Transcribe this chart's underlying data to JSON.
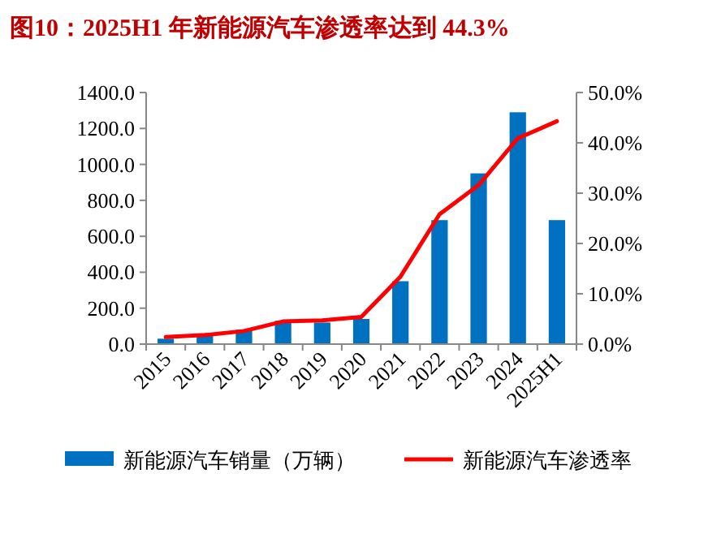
{
  "chart_data": {
    "type": "bar",
    "title": "图10：2025H1 年新能源汽车渗透率达到 44.3%",
    "categories": [
      "2015",
      "2016",
      "2017",
      "2018",
      "2019",
      "2020",
      "2021",
      "2022",
      "2023",
      "2024",
      "2025H1"
    ],
    "series": [
      {
        "name": "新能源汽车销量（万辆）",
        "color": "#0070c0",
        "values": [
          30,
          50,
          80,
          130,
          120,
          140,
          350,
          690,
          950,
          1290,
          690
        ]
      },
      {
        "name": "新能源汽车渗透率",
        "type": "line",
        "axis": "y2",
        "color": "#ff0000",
        "values": [
          1.4,
          1.8,
          2.6,
          4.5,
          4.7,
          5.4,
          13.4,
          25.8,
          31.6,
          40.9,
          44.3
        ]
      }
    ],
    "ylim": [
      0,
      1400
    ],
    "yticks": [
      {
        "value": 0,
        "label": "0.0"
      },
      {
        "value": 200,
        "label": "200.0"
      },
      {
        "value": 400,
        "label": "400.0"
      },
      {
        "value": 600,
        "label": "600.0"
      },
      {
        "value": 800,
        "label": "800.0"
      },
      {
        "value": 1000,
        "label": "1000.0"
      },
      {
        "value": 1200,
        "label": "1200.0"
      },
      {
        "value": 1400,
        "label": "1400.0"
      }
    ],
    "y2lim": [
      0,
      50
    ],
    "y2ticks": [
      {
        "value": 0,
        "label": "0.0%"
      },
      {
        "value": 10,
        "label": "10.0%"
      },
      {
        "value": 20,
        "label": "20.0%"
      },
      {
        "value": 30,
        "label": "30.0%"
      },
      {
        "value": 40,
        "label": "40.0%"
      },
      {
        "value": 50,
        "label": "50.0%"
      }
    ],
    "grid": false,
    "legend": "bottom"
  }
}
